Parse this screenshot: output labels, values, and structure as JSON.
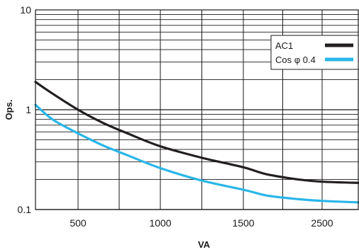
{
  "chart_data": {
    "type": "line",
    "xlabel": "VA",
    "ylabel": "Ops.",
    "y_scale": "log",
    "ylim": [
      0.1,
      10
    ],
    "x_ticks": [
      {
        "label": "500",
        "value": 500
      },
      {
        "label": "1000",
        "value": 1000
      },
      {
        "label": "1500",
        "value": 1500
      },
      {
        "label": "2500",
        "value": 2500
      }
    ],
    "y_ticks": [
      {
        "label": "0.1",
        "value": 0.1
      },
      {
        "label": "1",
        "value": 1
      },
      {
        "label": "10",
        "value": 10
      }
    ],
    "grid": true,
    "legend": "top-right",
    "series": [
      {
        "name": "AC1",
        "color": "#231f20",
        "points": [
          {
            "x": 250,
            "y": 1.9
          },
          {
            "x": 350,
            "y": 1.45
          },
          {
            "x": 500,
            "y": 1.0
          },
          {
            "x": 650,
            "y": 0.74
          },
          {
            "x": 800,
            "y": 0.58
          },
          {
            "x": 1000,
            "y": 0.43
          },
          {
            "x": 1250,
            "y": 0.33
          },
          {
            "x": 1500,
            "y": 0.265
          },
          {
            "x": 1800,
            "y": 0.225
          },
          {
            "x": 2200,
            "y": 0.2
          },
          {
            "x": 2500,
            "y": 0.19
          },
          {
            "x": 2800,
            "y": 0.185
          }
        ]
      },
      {
        "name": "Cos φ 0.4",
        "color": "#29b6e8",
        "points": [
          {
            "x": 250,
            "y": 1.12
          },
          {
            "x": 350,
            "y": 0.8
          },
          {
            "x": 500,
            "y": 0.58
          },
          {
            "x": 650,
            "y": 0.44
          },
          {
            "x": 800,
            "y": 0.35
          },
          {
            "x": 1000,
            "y": 0.26
          },
          {
            "x": 1250,
            "y": 0.195
          },
          {
            "x": 1500,
            "y": 0.158
          },
          {
            "x": 1800,
            "y": 0.138
          },
          {
            "x": 2200,
            "y": 0.127
          },
          {
            "x": 2500,
            "y": 0.122
          },
          {
            "x": 2800,
            "y": 0.118
          }
        ]
      }
    ]
  }
}
